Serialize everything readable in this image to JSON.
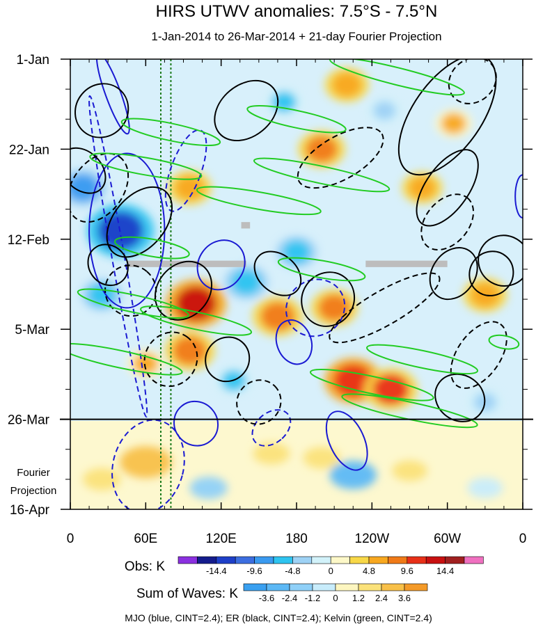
{
  "chart_data": {
    "type": "heatmap",
    "title": "HIRS UTWV anomalies: 7.5°S - 7.5°N",
    "subtitle": "1-Jan-2014 to 26-Mar-2014 + 21-day Fourier Projection",
    "x_ticks": [
      {
        "lon": 0,
        "label": "0"
      },
      {
        "lon": 60,
        "label": "60E"
      },
      {
        "lon": 120,
        "label": "120E"
      },
      {
        "lon": 180,
        "label": "180"
      },
      {
        "lon": 240,
        "label": "120W"
      },
      {
        "lon": 300,
        "label": "60W"
      },
      {
        "lon": 360,
        "label": "0"
      }
    ],
    "xlim": [
      0,
      360
    ],
    "y_ticks": [
      {
        "day": 0,
        "label": "1-Jan"
      },
      {
        "day": 21,
        "label": "22-Jan"
      },
      {
        "day": 42,
        "label": "12-Feb"
      },
      {
        "day": 63,
        "label": "5-Mar"
      },
      {
        "day": 84,
        "label": "26-Mar"
      },
      {
        "day": 105,
        "label": "16-Apr"
      }
    ],
    "ylim_days": [
      0,
      105
    ],
    "observation_end_day": 84,
    "projection_label": [
      "Fourier",
      "Projection"
    ],
    "reference_lines_lon": [
      72,
      80
    ],
    "obs_colorbar": {
      "label": "Obs: K",
      "colors": [
        "#8b30e0",
        "#141c8c",
        "#1e3fc8",
        "#3c6ee0",
        "#3a9af0",
        "#2ec4f0",
        "#9ed2f5",
        "#d2f2fa",
        "#fdf8c8",
        "#f8d848",
        "#f8a820",
        "#f07a18",
        "#e83018",
        "#c81010",
        "#a02020",
        "#f070c0"
      ],
      "tick_labels": [
        "-14.4",
        "-9.6",
        "-4.8",
        "0",
        "4.8",
        "9.6",
        "14.4"
      ]
    },
    "waves_colorbar": {
      "label": "Sum of Waves: K",
      "colors": [
        "#3aa0f0",
        "#5cb8f5",
        "#8fd0f8",
        "#c8ecfb",
        "#fdf6c0",
        "#fbe27a",
        "#f8c048",
        "#f49a28"
      ],
      "tick_labels": [
        "-3.6",
        "-2.4",
        "-1.2",
        "0",
        "1.2",
        "2.4",
        "3.6"
      ]
    },
    "legend_text": "MJO (blue, CINT=2.4); ER (black, CINT=2.4); Kelvin (green, CINT=2.4)",
    "series": [
      {
        "name": "MJO",
        "color": "#1a1ad2"
      },
      {
        "name": "ER",
        "color": "#000000"
      },
      {
        "name": "Kelvin",
        "color": "#22cc22"
      }
    ],
    "anomaly_blobs": [
      {
        "lon": 40,
        "day": 40,
        "value": -14
      },
      {
        "lon": 10,
        "day": 30,
        "value": -8
      },
      {
        "lon": 25,
        "day": 55,
        "value": -6
      },
      {
        "lon": 100,
        "day": 57,
        "value": 12
      },
      {
        "lon": 95,
        "day": 68,
        "value": 9
      },
      {
        "lon": 60,
        "day": 71,
        "value": 5
      },
      {
        "lon": 200,
        "day": 21,
        "value": 8
      },
      {
        "lon": 220,
        "day": 6,
        "value": 7
      },
      {
        "lon": 210,
        "day": 58,
        "value": 8
      },
      {
        "lon": 225,
        "day": 75,
        "value": 11
      },
      {
        "lon": 255,
        "day": 77,
        "value": 10
      },
      {
        "lon": 165,
        "day": 60,
        "value": 9
      },
      {
        "lon": 280,
        "day": 30,
        "value": 6
      },
      {
        "lon": 305,
        "day": 15,
        "value": 5
      },
      {
        "lon": 330,
        "day": 55,
        "value": 7
      },
      {
        "lon": 95,
        "day": 30,
        "value": 7
      },
      {
        "lon": 180,
        "day": 45,
        "value": -6
      },
      {
        "lon": 170,
        "day": 10,
        "value": -5
      },
      {
        "lon": 140,
        "day": 52,
        "value": -7
      },
      {
        "lon": 130,
        "day": 75,
        "value": -5
      },
      {
        "lon": 250,
        "day": 12,
        "value": -4
      },
      {
        "lon": 330,
        "day": 80,
        "value": -4
      }
    ],
    "projection_blobs": [
      {
        "lon": 60,
        "day": 94,
        "value": 3.2
      },
      {
        "lon": 25,
        "day": 98,
        "value": 1.5
      },
      {
        "lon": 160,
        "day": 92,
        "value": 1.4
      },
      {
        "lon": 200,
        "day": 93,
        "value": 1.4
      },
      {
        "lon": 270,
        "day": 96,
        "value": 1.2
      },
      {
        "lon": 110,
        "day": 100,
        "value": -1.5
      },
      {
        "lon": 225,
        "day": 97,
        "value": -2.6
      },
      {
        "lon": 330,
        "day": 100,
        "value": -1.2
      }
    ],
    "contours": [
      {
        "wave": "MJO",
        "lon": 38,
        "day": 46,
        "rx": 5,
        "ry": 38,
        "angle": -10,
        "dashed": true
      },
      {
        "wave": "MJO",
        "lon": 45,
        "day": 40,
        "rx": 30,
        "ry": 18,
        "angle": 0,
        "dashed": false
      },
      {
        "wave": "MJO",
        "lon": 34,
        "day": 8,
        "rx": 6,
        "ry": 10,
        "angle": -20,
        "dashed": false
      },
      {
        "wave": "MJO",
        "lon": 92,
        "day": 26,
        "rx": 12,
        "ry": 10,
        "angle": 20,
        "dashed": true
      },
      {
        "wave": "MJO",
        "lon": 120,
        "day": 48,
        "rx": 18,
        "ry": 6,
        "angle": 35,
        "dashed": false
      },
      {
        "wave": "MJO",
        "lon": 195,
        "day": 58,
        "rx": 22,
        "ry": 7,
        "angle": 55,
        "dashed": true
      },
      {
        "wave": "MJO",
        "lon": 178,
        "day": 66,
        "rx": 18,
        "ry": 4,
        "angle": 70,
        "dashed": false
      },
      {
        "wave": "MJO",
        "lon": 62,
        "day": 95,
        "rx": 28,
        "ry": 11,
        "angle": 15,
        "dashed": true
      },
      {
        "wave": "MJO",
        "lon": 100,
        "day": 85,
        "rx": 18,
        "ry": 5,
        "angle": 50,
        "dashed": false
      },
      {
        "wave": "MJO",
        "lon": 160,
        "day": 86,
        "rx": 12,
        "ry": 5,
        "angle": 50,
        "dashed": true
      },
      {
        "wave": "MJO",
        "lon": 220,
        "day": 89,
        "rx": 25,
        "ry": 4,
        "angle": 65,
        "dashed": false
      },
      {
        "wave": "MJO",
        "lon": 360,
        "day": 32,
        "rx": 6,
        "ry": 5,
        "angle": 0,
        "dashed": false
      },
      {
        "wave": "ER",
        "lon": 25,
        "day": 12,
        "rx": 22,
        "ry": 6,
        "angle": -50,
        "dashed": false
      },
      {
        "wave": "ER",
        "lon": 22,
        "day": 30,
        "rx": 30,
        "ry": 6,
        "angle": -55,
        "dashed": true
      },
      {
        "wave": "ER",
        "lon": 10,
        "day": 26,
        "rx": 15,
        "ry": 6,
        "angle": -45,
        "dashed": false
      },
      {
        "wave": "ER",
        "lon": 55,
        "day": 38,
        "rx": 32,
        "ry": 6,
        "angle": -50,
        "dashed": false
      },
      {
        "wave": "ER",
        "lon": 30,
        "day": 48,
        "rx": 15,
        "ry": 5,
        "angle": -40,
        "dashed": false
      },
      {
        "wave": "ER",
        "lon": 48,
        "day": 54,
        "rx": 20,
        "ry": 6,
        "angle": -50,
        "dashed": true
      },
      {
        "wave": "ER",
        "lon": 90,
        "day": 54,
        "rx": 25,
        "ry": 6,
        "angle": -50,
        "dashed": false
      },
      {
        "wave": "ER",
        "lon": 80,
        "day": 70,
        "rx": 22,
        "ry": 6,
        "angle": -55,
        "dashed": true
      },
      {
        "wave": "ER",
        "lon": 125,
        "day": 70,
        "rx": 18,
        "ry": 5,
        "angle": -50,
        "dashed": false
      },
      {
        "wave": "ER",
        "lon": 140,
        "day": 12,
        "rx": 28,
        "ry": 6,
        "angle": -40,
        "dashed": false
      },
      {
        "wave": "ER",
        "lon": 215,
        "day": 23,
        "rx": 38,
        "ry": 5,
        "angle": -30,
        "dashed": true
      },
      {
        "wave": "ER",
        "lon": 165,
        "day": 50,
        "rx": 15,
        "ry": 6,
        "angle": -50,
        "dashed": false
      },
      {
        "wave": "ER",
        "lon": 205,
        "day": 56,
        "rx": 22,
        "ry": 6,
        "angle": -55,
        "dashed": false
      },
      {
        "wave": "ER",
        "lon": 250,
        "day": 58,
        "rx": 50,
        "ry": 4,
        "angle": -30,
        "dashed": true
      },
      {
        "wave": "ER",
        "lon": 300,
        "day": 13,
        "rx": 55,
        "ry": 8,
        "angle": -55,
        "dashed": false
      },
      {
        "wave": "ER",
        "lon": 320,
        "day": 5,
        "rx": 20,
        "ry": 5,
        "angle": -40,
        "dashed": true
      },
      {
        "wave": "ER",
        "lon": 300,
        "day": 30,
        "rx": 35,
        "ry": 5,
        "angle": -55,
        "dashed": false
      },
      {
        "wave": "ER",
        "lon": 300,
        "day": 38,
        "rx": 25,
        "ry": 5,
        "angle": -50,
        "dashed": true
      },
      {
        "wave": "ER",
        "lon": 305,
        "day": 50,
        "rx": 22,
        "ry": 5,
        "angle": -55,
        "dashed": false
      },
      {
        "wave": "ER",
        "lon": 325,
        "day": 69,
        "rx": 30,
        "ry": 5,
        "angle": -55,
        "dashed": true
      },
      {
        "wave": "ER",
        "lon": 335,
        "day": 50,
        "rx": 18,
        "ry": 5,
        "angle": -50,
        "dashed": false
      },
      {
        "wave": "ER",
        "lon": 310,
        "day": 79,
        "rx": 18,
        "ry": 6,
        "angle": -55,
        "dashed": false
      },
      {
        "wave": "ER",
        "lon": 150,
        "day": 80,
        "rx": 18,
        "ry": 5,
        "angle": -45,
        "dashed": true
      },
      {
        "wave": "ER",
        "lon": 345,
        "day": 47,
        "rx": 20,
        "ry": 6,
        "angle": -60,
        "dashed": false
      },
      {
        "wave": "Kelvin",
        "lon": 260,
        "day": 4,
        "rx": 55,
        "ry": 2,
        "angle": 14,
        "dashed": false
      },
      {
        "wave": "Kelvin",
        "lon": 180,
        "day": 14,
        "rx": 40,
        "ry": 2,
        "angle": 12,
        "dashed": false
      },
      {
        "wave": "Kelvin",
        "lon": 80,
        "day": 17,
        "rx": 40,
        "ry": 2,
        "angle": 12,
        "dashed": false
      },
      {
        "wave": "Kelvin",
        "lon": 60,
        "day": 25,
        "rx": 45,
        "ry": 2,
        "angle": 10,
        "dashed": false
      },
      {
        "wave": "Kelvin",
        "lon": 200,
        "day": 27,
        "rx": 55,
        "ry": 2,
        "angle": 12,
        "dashed": false
      },
      {
        "wave": "Kelvin",
        "lon": 150,
        "day": 33,
        "rx": 50,
        "ry": 2,
        "angle": 10,
        "dashed": false
      },
      {
        "wave": "Kelvin",
        "lon": 65,
        "day": 44,
        "rx": 30,
        "ry": 2,
        "angle": 10,
        "dashed": false
      },
      {
        "wave": "Kelvin",
        "lon": 50,
        "day": 57,
        "rx": 45,
        "ry": 2,
        "angle": 12,
        "dashed": false
      },
      {
        "wave": "Kelvin",
        "lon": 100,
        "day": 61,
        "rx": 45,
        "ry": 2,
        "angle": 12,
        "dashed": false
      },
      {
        "wave": "Kelvin",
        "lon": 200,
        "day": 49,
        "rx": 35,
        "ry": 2,
        "angle": 10,
        "dashed": false
      },
      {
        "wave": "Kelvin",
        "lon": 40,
        "day": 70,
        "rx": 50,
        "ry": 2,
        "angle": 12,
        "dashed": false
      },
      {
        "wave": "Kelvin",
        "lon": 280,
        "day": 70,
        "rx": 45,
        "ry": 2,
        "angle": 12,
        "dashed": false
      },
      {
        "wave": "Kelvin",
        "lon": 240,
        "day": 76,
        "rx": 50,
        "ry": 2,
        "angle": 12,
        "dashed": false
      },
      {
        "wave": "Kelvin",
        "lon": 270,
        "day": 82,
        "rx": 55,
        "ry": 2,
        "angle": 12,
        "dashed": false
      },
      {
        "wave": "Kelvin",
        "lon": 345,
        "day": 66,
        "rx": 12,
        "ry": 1.5,
        "angle": 10,
        "dashed": false
      }
    ],
    "missing_data": [
      {
        "lon_start": 45,
        "lon_end": 140,
        "day_start": 47,
        "day_end": 48.5
      },
      {
        "lon_start": 235,
        "lon_end": 300,
        "day_start": 47,
        "day_end": 48.5
      },
      {
        "lon_start": 136,
        "lon_end": 143,
        "day_start": 38,
        "day_end": 39.5
      }
    ]
  }
}
